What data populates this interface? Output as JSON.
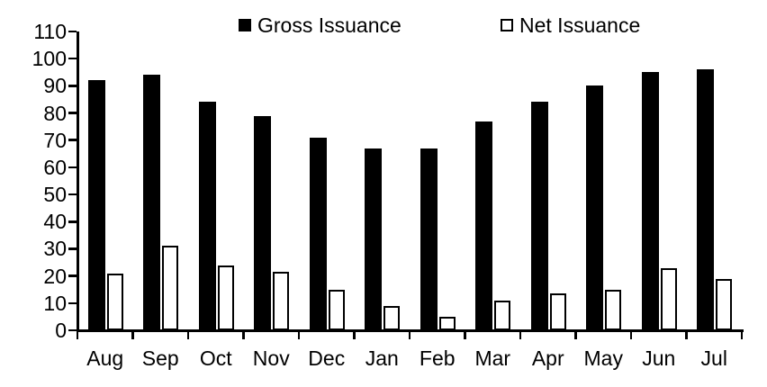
{
  "chart_data": {
    "type": "bar",
    "title": "",
    "xlabel": "",
    "ylabel": "",
    "categories": [
      "Aug",
      "Sep",
      "Oct",
      "Nov",
      "Dec",
      "Jan",
      "Feb",
      "Mar",
      "Apr",
      "May",
      "Jun",
      "Jul"
    ],
    "series": [
      {
        "name": "Gross Issuance",
        "color": "#000000",
        "values": [
          92,
          94,
          84,
          79,
          71,
          67,
          67,
          77,
          84,
          90,
          95,
          96
        ]
      },
      {
        "name": "Net Issuance",
        "color": "#ffffff",
        "border_color": "#000000",
        "values": [
          21,
          31,
          24,
          21.5,
          15,
          9,
          5,
          11,
          13.5,
          15,
          23,
          19
        ]
      }
    ],
    "ylim": [
      0,
      110
    ],
    "ytick_step": 10,
    "grid": false,
    "legend_position": "top-center",
    "axis_color": "#000000",
    "text_color": "#000000",
    "background": "#ffffff"
  }
}
